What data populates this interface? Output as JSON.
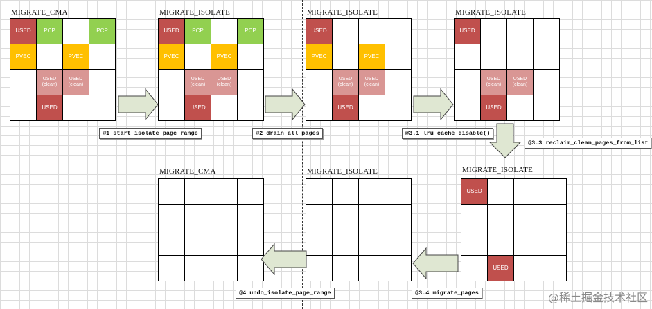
{
  "legend_labels": {
    "used": "USED",
    "pcp": "PCP",
    "pvec": "PVEC",
    "used_clean_1": "USED",
    "used_clean_2": "(clean)"
  },
  "colors": {
    "used": "#c0504d",
    "pcp": "#92d050",
    "pvec": "#ffc000",
    "used_clean": "#d99694",
    "arrow_fill": "#dfe7d2"
  },
  "panels": [
    {
      "title": "MIGRATE_CMA",
      "cells": [
        [
          "used",
          "pcp",
          "",
          "pcp"
        ],
        [
          "pvec",
          "",
          "pvec",
          ""
        ],
        [
          "",
          "clean",
          "clean",
          ""
        ],
        [
          "",
          "used",
          "",
          ""
        ]
      ]
    },
    {
      "title": "MIGRATE_ISOLATE",
      "cells": [
        [
          "used",
          "pcp",
          "",
          "pcp"
        ],
        [
          "pvec",
          "",
          "pvec",
          ""
        ],
        [
          "",
          "clean",
          "clean",
          ""
        ],
        [
          "",
          "used",
          "",
          ""
        ]
      ]
    },
    {
      "title": "MIGRATE_ISOLATE",
      "cells": [
        [
          "used",
          "",
          "",
          ""
        ],
        [
          "pvec",
          "",
          "pvec",
          ""
        ],
        [
          "",
          "clean",
          "clean",
          ""
        ],
        [
          "",
          "used",
          "",
          ""
        ]
      ]
    },
    {
      "title": "MIGRATE_ISOLATE",
      "cells": [
        [
          "used",
          "",
          "",
          ""
        ],
        [
          "",
          "",
          "",
          ""
        ],
        [
          "",
          "clean",
          "clean",
          ""
        ],
        [
          "",
          "used",
          "",
          ""
        ]
      ]
    },
    {
      "title": "MIGRATE_ISOLATE",
      "cells": [
        [
          "used",
          "",
          "",
          ""
        ],
        [
          "",
          "",
          "",
          ""
        ],
        [
          "",
          "",
          "",
          ""
        ],
        [
          "",
          "used",
          "",
          ""
        ]
      ]
    },
    {
      "title": "MIGRATE_ISOLATE",
      "cells": [
        [
          "",
          "",
          "",
          ""
        ],
        [
          "",
          "",
          "",
          ""
        ],
        [
          "",
          "",
          "",
          ""
        ],
        [
          "",
          "",
          "",
          ""
        ]
      ]
    },
    {
      "title": "MIGRATE_CMA",
      "cells": [
        [
          "",
          "",
          "",
          ""
        ],
        [
          "",
          "",
          "",
          ""
        ],
        [
          "",
          "",
          "",
          ""
        ],
        [
          "",
          "",
          "",
          ""
        ]
      ]
    }
  ],
  "steps": [
    "@1 start_isolate_page_range",
    "@2 drain_all_pages",
    "@3.1 lru_cache_disable()",
    "@3.3 reclaim_clean_pages_from_list",
    "@3.4 migrate_pages",
    "@4 undo_isolate_page_range"
  ],
  "watermark": "@稀土掘金技术社区"
}
